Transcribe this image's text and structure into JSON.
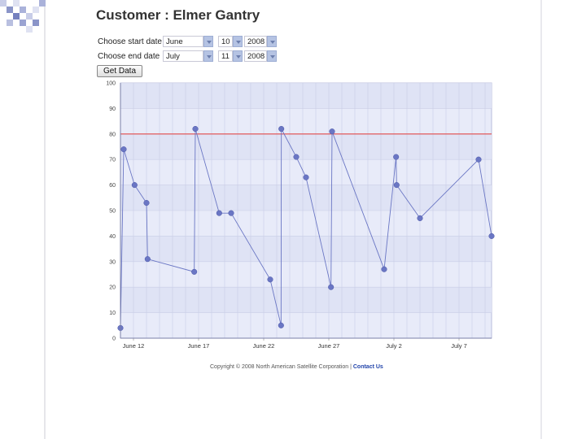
{
  "page": {
    "title": "Customer : Elmer Gantry"
  },
  "form": {
    "start": {
      "label": "Choose start date",
      "month": "June",
      "day": "10",
      "year": "2008"
    },
    "end": {
      "label": "Choose end date",
      "month": "July",
      "day": "11",
      "year": "2008"
    },
    "button_label": "Get Data"
  },
  "chart_data": {
    "type": "line",
    "title": "",
    "xlabel": "",
    "ylabel": "",
    "ylim": [
      0,
      100
    ],
    "y_ticks": [
      0,
      10,
      20,
      30,
      40,
      50,
      60,
      70,
      80,
      90,
      100
    ],
    "x_ticks": [
      "June 12",
      "June 17",
      "June 22",
      "June 27",
      "July 2",
      "July 7"
    ],
    "grid": true,
    "reference_line": {
      "value": 80,
      "color": "#e14b4b"
    },
    "series": [
      {
        "color": "#6a76c4",
        "points": [
          {
            "x": "June 11 00:00",
            "y": 4
          },
          {
            "x": "June 11 06:00",
            "y": 74
          },
          {
            "x": "June 12 02:00",
            "y": 60
          },
          {
            "x": "June 13 00:00",
            "y": 53
          },
          {
            "x": "June 13 02:00",
            "y": 31
          },
          {
            "x": "June 16 16:00",
            "y": 26
          },
          {
            "x": "June 16 18:00",
            "y": 82
          },
          {
            "x": "June 18 14:00",
            "y": 49
          },
          {
            "x": "June 19 12:00",
            "y": 49
          },
          {
            "x": "June 22 12:00",
            "y": 23
          },
          {
            "x": "June 23 08:00",
            "y": 5
          },
          {
            "x": "June 23 08:30",
            "y": 82
          },
          {
            "x": "June 24 12:00",
            "y": 71
          },
          {
            "x": "June 25 06:00",
            "y": 63
          },
          {
            "x": "June 27 04:00",
            "y": 20
          },
          {
            "x": "June 27 06:00",
            "y": 81
          },
          {
            "x": "July 1 06:00",
            "y": 27
          },
          {
            "x": "July 2 04:00",
            "y": 71
          },
          {
            "x": "July 2 05:00",
            "y": 60
          },
          {
            "x": "July 4 00:00",
            "y": 47
          },
          {
            "x": "July 8 12:00",
            "y": 70
          },
          {
            "x": "July 9 12:00",
            "y": 40
          }
        ]
      }
    ]
  },
  "footer": {
    "copyright": "Copyright © 2008 North American Satellite Corporation |",
    "contact": "Contact Us"
  },
  "colors": {
    "plot_background": "#e8ebf9",
    "plot_band": "#dfe3f5",
    "gridline": "#c9cde6",
    "dropdown": "#b5c3e3"
  }
}
